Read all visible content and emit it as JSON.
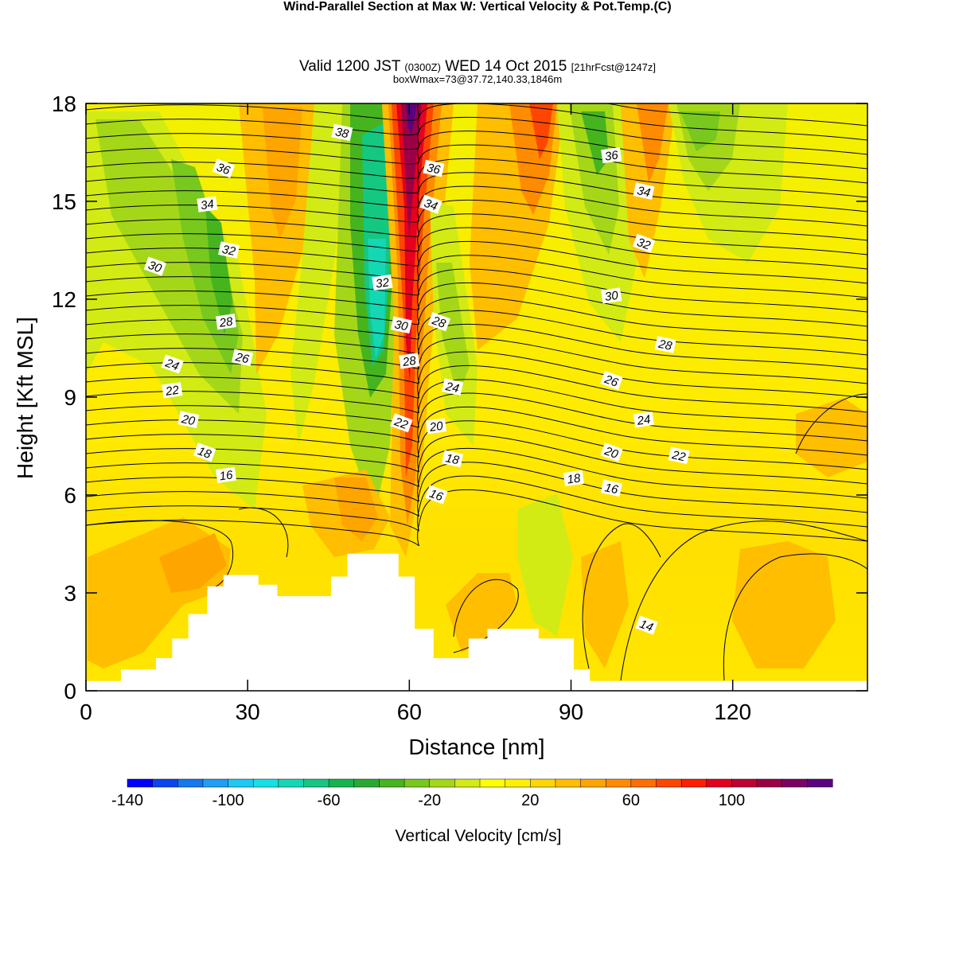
{
  "title": {
    "main": "Wind-Parallel Section at Max W: Vertical Velocity & Pot.Temp.",
    "copyright_mark": "(C)",
    "valid_prefix": "Valid 1200 JST",
    "valid_utc": "(0300Z)",
    "valid_date": "WED 14 Oct 2015",
    "forecast": "[21hrFcst@1247z]",
    "box_info": "boxWmax=73@37.72,140.33,1846m"
  },
  "chart_data": {
    "type": "heatmap",
    "xlabel": "Distance [nm]",
    "ylabel": "Height [Kft MSL]",
    "xlim": [
      0,
      145
    ],
    "ylim": [
      0,
      18
    ],
    "x_ticks": [
      0,
      30,
      60,
      90,
      120
    ],
    "y_ticks": [
      0,
      3,
      6,
      9,
      12,
      15,
      18
    ],
    "fill_field": "Vertical Velocity [cm/s]",
    "contour_field": "Potential Temperature",
    "colorbar": {
      "title": "Vertical Velocity [cm/s]",
      "tick_labels": [
        "-140",
        "-100",
        "-60",
        "-20",
        "20",
        "60",
        "100"
      ],
      "tick_values": [
        -140,
        -100,
        -60,
        -20,
        20,
        60,
        100
      ],
      "range": [
        -140,
        140
      ],
      "step": 10,
      "colors": [
        "#0000ff",
        "#0a46f0",
        "#1478f0",
        "#1e9ff5",
        "#1ec8f5",
        "#14e1e6",
        "#14d7b4",
        "#14c882",
        "#14b450",
        "#28aa32",
        "#46b41e",
        "#78c81e",
        "#a5d719",
        "#d2eb14",
        "#ffff00",
        "#fff000",
        "#ffd700",
        "#ffbe00",
        "#ffa500",
        "#ff8c00",
        "#ff6e00",
        "#ff4600",
        "#ff1e00",
        "#e6001e",
        "#be0032",
        "#9b0046",
        "#7d0064",
        "#5a0082"
      ]
    },
    "terrain_profile": [
      [
        0,
        0.3
      ],
      [
        6.5,
        0.3
      ],
      [
        6.5,
        0.65
      ],
      [
        13,
        0.65
      ],
      [
        13,
        1.0
      ],
      [
        16,
        1.0
      ],
      [
        16,
        1.6
      ],
      [
        19,
        1.6
      ],
      [
        19,
        2.35
      ],
      [
        22.5,
        2.35
      ],
      [
        22.5,
        3.2
      ],
      [
        25.5,
        3.2
      ],
      [
        25.5,
        3.55
      ],
      [
        32,
        3.55
      ],
      [
        32,
        3.25
      ],
      [
        35.5,
        3.25
      ],
      [
        35.5,
        2.9
      ],
      [
        45.5,
        2.9
      ],
      [
        45.5,
        3.5
      ],
      [
        48.5,
        3.5
      ],
      [
        48.5,
        4.2
      ],
      [
        58,
        4.2
      ],
      [
        58,
        3.5
      ],
      [
        61,
        3.5
      ],
      [
        61,
        1.9
      ],
      [
        64.5,
        1.9
      ],
      [
        64.5,
        1.0
      ],
      [
        71,
        1.0
      ],
      [
        71,
        1.6
      ],
      [
        74.5,
        1.6
      ],
      [
        74.5,
        1.9
      ],
      [
        84,
        1.9
      ],
      [
        84,
        1.6
      ],
      [
        90.5,
        1.6
      ],
      [
        90.5,
        0.65
      ],
      [
        93.5,
        0.65
      ],
      [
        93.5,
        0.3
      ],
      [
        145,
        0.3
      ]
    ],
    "theta_contour_labels": [
      {
        "value": "38",
        "x": 47.5,
        "y": 17.1
      },
      {
        "value": "36",
        "x": 25.5,
        "y": 16.0
      },
      {
        "value": "34",
        "x": 22.5,
        "y": 14.9
      },
      {
        "value": "32",
        "x": 26.5,
        "y": 13.5
      },
      {
        "value": "30",
        "x": 12.8,
        "y": 13.0
      },
      {
        "value": "28",
        "x": 26.0,
        "y": 11.3
      },
      {
        "value": "26",
        "x": 29.0,
        "y": 10.2
      },
      {
        "value": "24",
        "x": 16.0,
        "y": 10.0
      },
      {
        "value": "22",
        "x": 16.0,
        "y": 9.2
      },
      {
        "value": "20",
        "x": 19.0,
        "y": 8.3
      },
      {
        "value": "18",
        "x": 22.0,
        "y": 7.3
      },
      {
        "value": "16",
        "x": 26.0,
        "y": 6.6
      },
      {
        "value": "36",
        "x": 64.5,
        "y": 16.0
      },
      {
        "value": "34",
        "x": 64.0,
        "y": 14.9
      },
      {
        "value": "32",
        "x": 55.0,
        "y": 12.5
      },
      {
        "value": "30",
        "x": 58.5,
        "y": 11.2
      },
      {
        "value": "28",
        "x": 65.5,
        "y": 11.3
      },
      {
        "value": "28",
        "x": 60.0,
        "y": 10.1
      },
      {
        "value": "24",
        "x": 68.0,
        "y": 9.3
      },
      {
        "value": "22",
        "x": 58.5,
        "y": 8.2
      },
      {
        "value": "20",
        "x": 65.0,
        "y": 8.1
      },
      {
        "value": "18",
        "x": 68.0,
        "y": 7.1
      },
      {
        "value": "16",
        "x": 65.0,
        "y": 6.0
      },
      {
        "value": "36",
        "x": 97.5,
        "y": 16.4
      },
      {
        "value": "34",
        "x": 103.5,
        "y": 15.3
      },
      {
        "value": "32",
        "x": 103.5,
        "y": 13.7
      },
      {
        "value": "30",
        "x": 97.5,
        "y": 12.1
      },
      {
        "value": "28",
        "x": 107.5,
        "y": 10.6
      },
      {
        "value": "26",
        "x": 97.5,
        "y": 9.5
      },
      {
        "value": "24",
        "x": 103.5,
        "y": 8.3
      },
      {
        "value": "22",
        "x": 110.0,
        "y": 7.2
      },
      {
        "value": "20",
        "x": 97.5,
        "y": 7.3
      },
      {
        "value": "18",
        "x": 90.5,
        "y": 6.5
      },
      {
        "value": "16",
        "x": 97.5,
        "y": 6.2
      },
      {
        "value": "14",
        "x": 104.0,
        "y": 2.0
      }
    ]
  }
}
